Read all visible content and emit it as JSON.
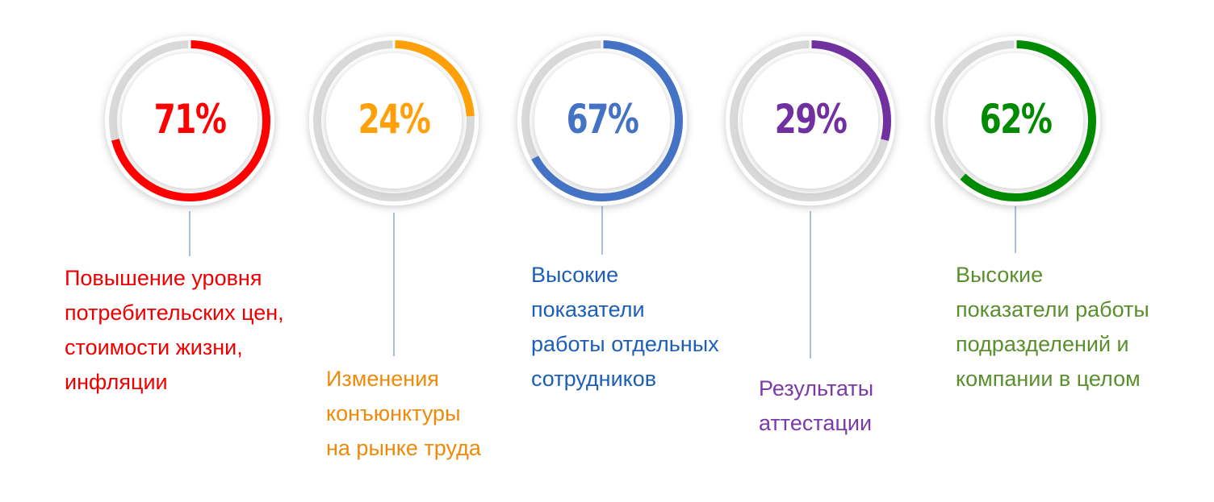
{
  "chart_data": {
    "type": "donut",
    "items": [
      {
        "value": 71,
        "value_label": "71%",
        "color": "#ff0000",
        "label_color": "#ee0000",
        "label": "Повышение уровня\nпотребительских цен,\nстоимости жизни,\nинфляции"
      },
      {
        "value": 24,
        "value_label": "24%",
        "color": "#ffa00a",
        "label_color": "#ee8a0a",
        "label": "Изменения\nконъюнктуры\nна рынке труда"
      },
      {
        "value": 67,
        "value_label": "67%",
        "color": "#4472c4",
        "label_color": "#1d5fb8",
        "label": "Высокие\nпоказатели\nработы отдельных\nсотрудников"
      },
      {
        "value": 29,
        "value_label": "29%",
        "color": "#7030a0",
        "label_color": "#7a3aa8",
        "label": "Результаты\nаттестации"
      },
      {
        "value": 62,
        "value_label": "62%",
        "color": "#008a00",
        "label_color": "#5a8f2e",
        "label": "Высокие\nпоказатели работы\nподразделений и\nкомпании в целом"
      }
    ],
    "track_color": "#d9d9d9"
  }
}
